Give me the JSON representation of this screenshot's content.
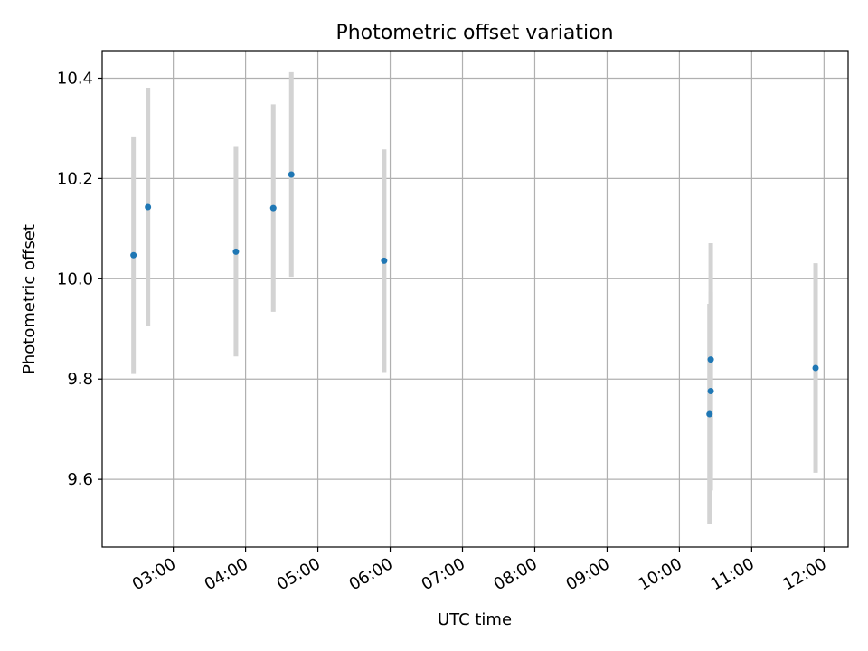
{
  "chart_data": {
    "type": "scatter",
    "title": "Photometric offset variation",
    "xlabel": "UTC time",
    "ylabel": "Photometric offset",
    "xlim": [
      "02:01",
      "12:20"
    ],
    "ylim": [
      9.465,
      10.455
    ],
    "grid": true,
    "x_ticks": [
      "03:00",
      "04:00",
      "05:00",
      "06:00",
      "07:00",
      "08:00",
      "09:00",
      "10:00",
      "11:00",
      "12:00"
    ],
    "y_ticks": [
      "9.6",
      "9.8",
      "10.0",
      "10.2",
      "10.4"
    ],
    "point_color": "#1f77b4",
    "errorbar_color": "#d3d3d3",
    "points": [
      {
        "x": "02:27",
        "y": 10.047,
        "yerr": 0.237
      },
      {
        "x": "02:39",
        "y": 10.143,
        "yerr": 0.238
      },
      {
        "x": "03:52",
        "y": 10.054,
        "yerr": 0.209
      },
      {
        "x": "04:23",
        "y": 10.141,
        "yerr": 0.207
      },
      {
        "x": "04:38",
        "y": 10.208,
        "yerr": 0.204
      },
      {
        "x": "05:55",
        "y": 10.036,
        "yerr": 0.222
      },
      {
        "x": "10:26",
        "y": 9.839,
        "yerr": 0.232
      },
      {
        "x": "10:26",
        "y": 9.776,
        "yerr": 0.198
      },
      {
        "x": "10:25",
        "y": 9.73,
        "yerr": 0.22
      },
      {
        "x": "11:53",
        "y": 9.822,
        "yerr": 0.209
      }
    ]
  }
}
